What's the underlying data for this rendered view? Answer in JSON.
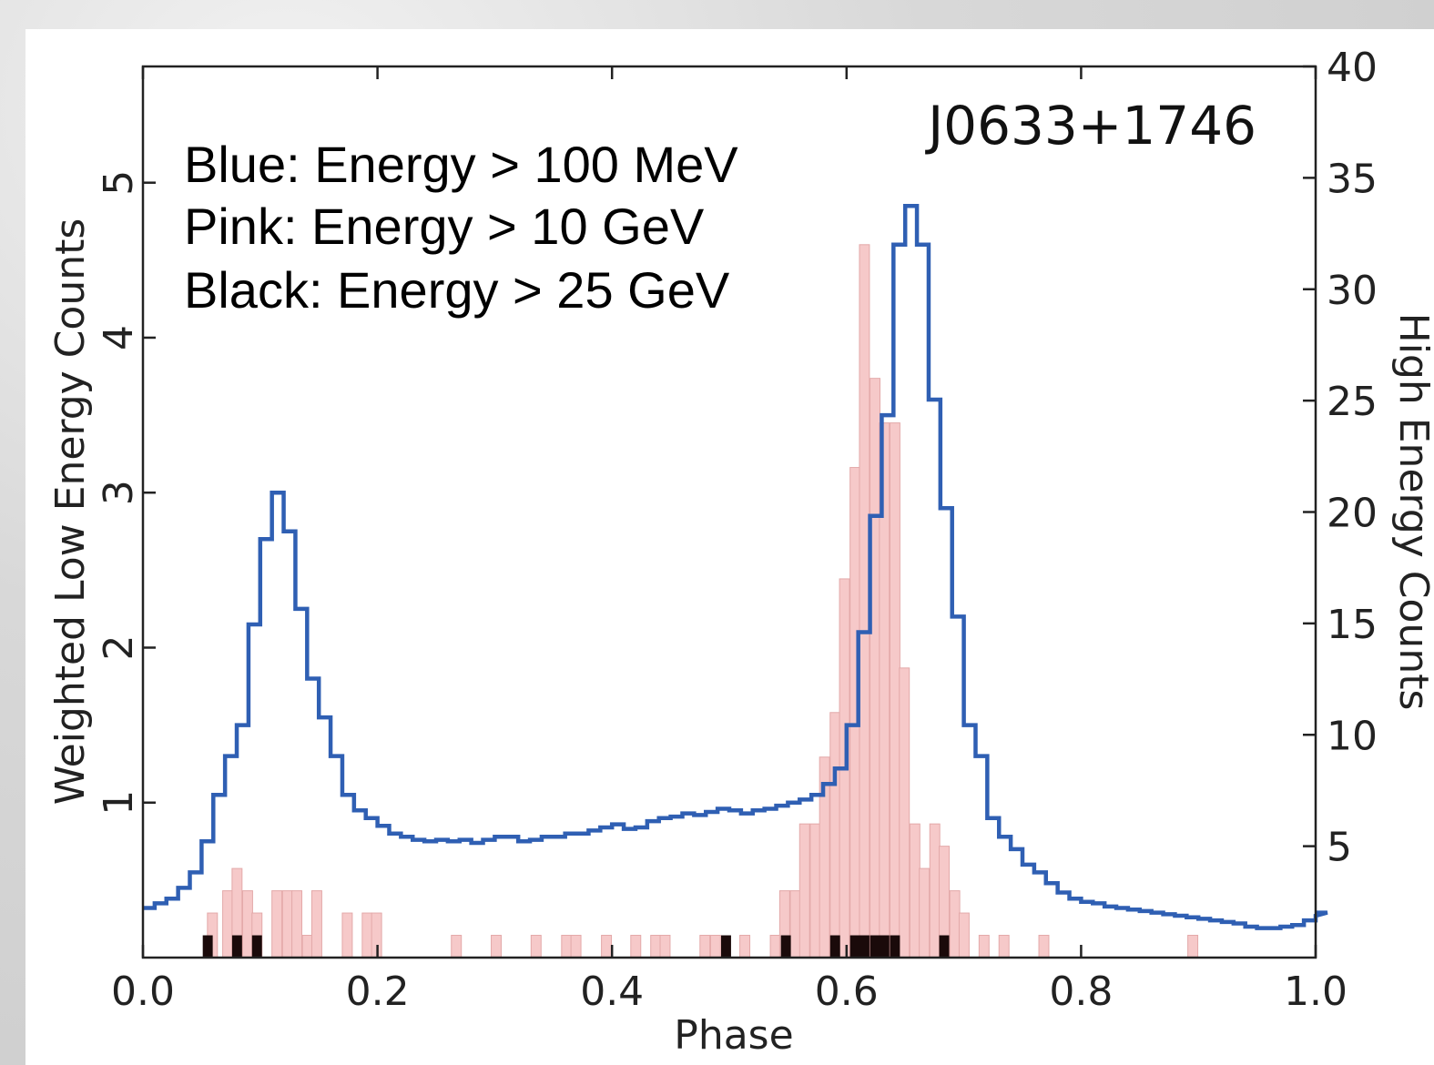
{
  "chart_data": {
    "type": "bar",
    "annotation": "J0633+1746",
    "legend": [
      "Blue: Energy > 100 MeV",
      "Pink: Energy > 10 GeV",
      "Black: Energy > 25 GeV"
    ],
    "xlabel": "Phase",
    "ylabel_left": "Weighted Low Energy Counts",
    "ylabel_right": "High Energy Counts",
    "xlim": [
      0.0,
      1.0
    ],
    "ylim_left": [
      0,
      5.75
    ],
    "ylim_right": [
      0,
      40
    ],
    "x_ticks": [
      "0.0",
      "0.2",
      "0.4",
      "0.6",
      "0.8",
      "1.0"
    ],
    "y_left_ticks": [
      "1",
      "2",
      "3",
      "4",
      "5"
    ],
    "y_right_ticks": [
      "5",
      "10",
      "15",
      "20",
      "25",
      "30",
      "35",
      "40"
    ],
    "colors": {
      "low_energy": "#2f5fb3",
      "pink": "#f6c9c9",
      "black": "#1a0a0a"
    },
    "series": [
      {
        "name": "Blue: Energy > 100 MeV",
        "axis": "left",
        "kind": "step",
        "bin_width": 0.01,
        "values": [
          0.32,
          0.35,
          0.38,
          0.45,
          0.55,
          0.75,
          1.05,
          1.3,
          1.5,
          2.15,
          2.7,
          3.0,
          2.75,
          2.25,
          1.8,
          1.55,
          1.3,
          1.05,
          0.95,
          0.9,
          0.85,
          0.8,
          0.78,
          0.76,
          0.75,
          0.76,
          0.75,
          0.76,
          0.74,
          0.76,
          0.78,
          0.78,
          0.75,
          0.76,
          0.78,
          0.78,
          0.8,
          0.8,
          0.82,
          0.84,
          0.86,
          0.83,
          0.84,
          0.88,
          0.9,
          0.91,
          0.93,
          0.92,
          0.94,
          0.96,
          0.95,
          0.93,
          0.95,
          0.96,
          0.98,
          1.0,
          1.02,
          1.05,
          1.12,
          1.22,
          1.5,
          2.1,
          2.85,
          3.5,
          4.6,
          4.85,
          4.6,
          3.6,
          2.9,
          2.2,
          1.5,
          1.3,
          0.9,
          0.78,
          0.7,
          0.6,
          0.55,
          0.48,
          0.42,
          0.38,
          0.36,
          0.35,
          0.33,
          0.32,
          0.31,
          0.3,
          0.29,
          0.28,
          0.27,
          0.26,
          0.25,
          0.24,
          0.23,
          0.22,
          0.2,
          0.19,
          0.19,
          0.2,
          0.21,
          0.24,
          0.27,
          0.29
        ]
      },
      {
        "name": "Pink: Energy > 10 GeV",
        "axis": "right",
        "kind": "bar",
        "bin_width": 0.0085,
        "bins": [
          {
            "x": 0.055,
            "y": 2
          },
          {
            "x": 0.068,
            "y": 3
          },
          {
            "x": 0.076,
            "y": 4
          },
          {
            "x": 0.085,
            "y": 3
          },
          {
            "x": 0.093,
            "y": 2
          },
          {
            "x": 0.11,
            "y": 3
          },
          {
            "x": 0.119,
            "y": 3
          },
          {
            "x": 0.127,
            "y": 3
          },
          {
            "x": 0.136,
            "y": 1
          },
          {
            "x": 0.144,
            "y": 3
          },
          {
            "x": 0.17,
            "y": 2
          },
          {
            "x": 0.187,
            "y": 2
          },
          {
            "x": 0.195,
            "y": 2
          },
          {
            "x": 0.263,
            "y": 1
          },
          {
            "x": 0.297,
            "y": 1
          },
          {
            "x": 0.331,
            "y": 1
          },
          {
            "x": 0.357,
            "y": 1
          },
          {
            "x": 0.365,
            "y": 1
          },
          {
            "x": 0.391,
            "y": 1
          },
          {
            "x": 0.416,
            "y": 1
          },
          {
            "x": 0.433,
            "y": 1
          },
          {
            "x": 0.441,
            "y": 1
          },
          {
            "x": 0.475,
            "y": 1
          },
          {
            "x": 0.484,
            "y": 1
          },
          {
            "x": 0.509,
            "y": 1
          },
          {
            "x": 0.535,
            "y": 1
          },
          {
            "x": 0.543,
            "y": 3
          },
          {
            "x": 0.552,
            "y": 3
          },
          {
            "x": 0.56,
            "y": 6
          },
          {
            "x": 0.569,
            "y": 6
          },
          {
            "x": 0.577,
            "y": 9
          },
          {
            "x": 0.586,
            "y": 11
          },
          {
            "x": 0.594,
            "y": 17
          },
          {
            "x": 0.603,
            "y": 22
          },
          {
            "x": 0.611,
            "y": 32
          },
          {
            "x": 0.62,
            "y": 26
          },
          {
            "x": 0.628,
            "y": 24
          },
          {
            "x": 0.637,
            "y": 24
          },
          {
            "x": 0.645,
            "y": 13
          },
          {
            "x": 0.654,
            "y": 6
          },
          {
            "x": 0.662,
            "y": 4
          },
          {
            "x": 0.671,
            "y": 6
          },
          {
            "x": 0.679,
            "y": 5
          },
          {
            "x": 0.688,
            "y": 3
          },
          {
            "x": 0.696,
            "y": 2
          },
          {
            "x": 0.713,
            "y": 1
          },
          {
            "x": 0.73,
            "y": 1
          },
          {
            "x": 0.764,
            "y": 1
          },
          {
            "x": 0.891,
            "y": 1
          }
        ]
      },
      {
        "name": "Black: Energy > 25 GeV",
        "axis": "right",
        "kind": "bar",
        "bin_width": 0.0085,
        "bins": [
          {
            "x": 0.051,
            "y": 1
          },
          {
            "x": 0.076,
            "y": 1
          },
          {
            "x": 0.093,
            "y": 1
          },
          {
            "x": 0.493,
            "y": 1
          },
          {
            "x": 0.544,
            "y": 1
          },
          {
            "x": 0.586,
            "y": 1
          },
          {
            "x": 0.603,
            "y": 1
          },
          {
            "x": 0.611,
            "y": 1
          },
          {
            "x": 0.62,
            "y": 1
          },
          {
            "x": 0.628,
            "y": 1
          },
          {
            "x": 0.637,
            "y": 1
          },
          {
            "x": 0.679,
            "y": 1
          }
        ]
      }
    ]
  }
}
